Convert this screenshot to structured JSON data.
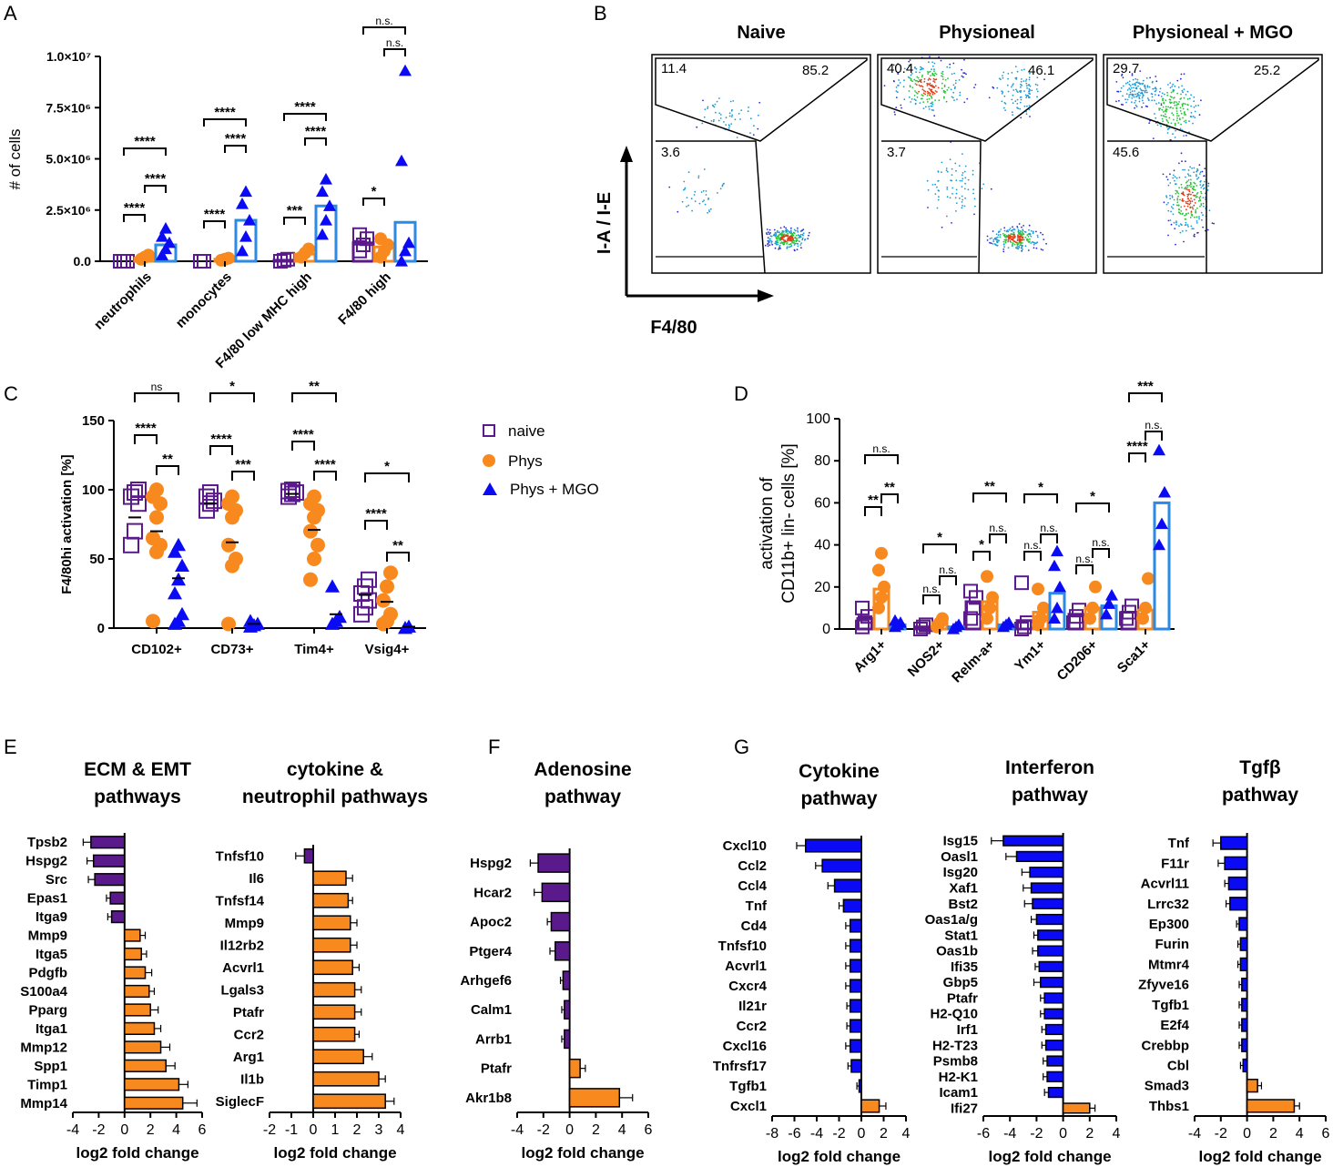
{
  "colors": {
    "naive": "#5b1a8c",
    "phys": "#f7891f",
    "mgo": "#0a0af5",
    "mgo_bar": "#2b8ae6"
  },
  "legend": {
    "items": [
      {
        "key": "naive",
        "label": "naive"
      },
      {
        "key": "phys",
        "label": "Phys"
      },
      {
        "key": "mgo",
        "label": "Phys + MGO"
      }
    ]
  },
  "chart_data": [
    {
      "panel": "A",
      "type": "scatter-bar",
      "ylabel": "# of cells",
      "ytick_labels": [
        "0.0",
        "2.5×10⁶",
        "5.0×10⁶",
        "7.5×10⁶",
        "1.0×10⁷"
      ],
      "ylim": [
        0,
        10000000
      ],
      "categories": [
        "neutrophils",
        "monocytes",
        "F4/80 low MHC high",
        "F4/80 high"
      ],
      "group_means": {
        "naive": [
          0,
          0,
          50000,
          900000
        ],
        "phys": [
          150000,
          100000,
          350000,
          700000
        ],
        "mgo": [
          800000,
          2000000,
          2700000,
          1900000
        ]
      },
      "points": {
        "naive": [
          [
            0,
            0,
            0
          ],
          [
            0,
            0
          ],
          [
            0,
            50000,
            100000
          ],
          [
            500000,
            800000,
            1100000,
            1300000
          ]
        ],
        "phys": [
          [
            100000,
            200000,
            300000
          ],
          [
            50000,
            100000,
            150000
          ],
          [
            200000,
            400000,
            600000
          ],
          [
            200000,
            500000,
            800000,
            1100000
          ]
        ],
        "mgo": [
          [
            300000,
            600000,
            900000,
            1200000,
            1600000
          ],
          [
            500000,
            1200000,
            2000000,
            2800000,
            3400000
          ],
          [
            1300000,
            2000000,
            2700000,
            3400000,
            4000000
          ],
          [
            0,
            500000,
            900000,
            4900000,
            9300000
          ]
        ]
      },
      "significance": [
        "****",
        "****",
        "****",
        "****",
        "****",
        "****",
        "***",
        "****",
        "****",
        "*",
        "n.s.",
        "n.s."
      ]
    },
    {
      "panel": "B",
      "type": "flow-cytometry",
      "xlabel": "F4/80",
      "ylabel": "I-A / I-E",
      "plots": [
        {
          "title": "Naive",
          "gates": [
            "11.4",
            "85.2",
            "3.6"
          ]
        },
        {
          "title": "Physioneal",
          "gates": [
            "40.4",
            "46.1",
            "3.7"
          ]
        },
        {
          "title": "Physioneal + MGO",
          "gates": [
            "29.7",
            "25.2",
            "45.6"
          ]
        }
      ]
    },
    {
      "panel": "C",
      "type": "scatter",
      "ylabel": "F4/80hi activation [%]",
      "ylim": [
        0,
        150
      ],
      "yticks": [
        "0",
        "50",
        "100",
        "150"
      ],
      "categories": [
        "CD102+",
        "CD73+",
        "Tim4+",
        "Vsig4+"
      ],
      "points": {
        "naive": [
          [
            60,
            70,
            90,
            95,
            98,
            100
          ],
          [
            85,
            90,
            92,
            95,
            98
          ],
          [
            95,
            97,
            98,
            99,
            100
          ],
          [
            10,
            15,
            20,
            25,
            30,
            35
          ]
        ],
        "phys": [
          [
            5,
            55,
            60,
            65,
            80,
            90,
            95,
            100
          ],
          [
            3,
            45,
            50,
            60,
            80,
            85,
            90,
            95
          ],
          [
            35,
            50,
            60,
            70,
            80,
            85,
            90,
            95
          ],
          [
            3,
            5,
            10,
            20,
            30,
            40
          ]
        ],
        "mgo": [
          [
            3,
            5,
            10,
            25,
            35,
            45,
            55,
            60
          ],
          [
            1,
            2,
            3,
            5
          ],
          [
            3,
            5,
            8,
            30
          ],
          [
            0,
            1
          ]
        ]
      },
      "means": {
        "naive": [
          80,
          90,
          97,
          24
        ],
        "phys": [
          70,
          62,
          71,
          19
        ],
        "mgo": [
          36,
          3,
          10,
          1
        ]
      },
      "significance": [
        "****",
        "ns",
        "**",
        "****",
        "*",
        "***",
        "****",
        "**",
        "****",
        "****",
        "*",
        "**"
      ]
    },
    {
      "panel": "D",
      "type": "scatter-bar",
      "ylabel_line1": "activation of",
      "ylabel_line2": "CD11b+ lin- cells [%]",
      "ylim": [
        0,
        100
      ],
      "yticks": [
        "0",
        "20",
        "40",
        "60",
        "80",
        "100"
      ],
      "categories": [
        "Arg1+",
        "NOS2+",
        "Relm-a+",
        "Ym1+",
        "CD206+",
        "Sca1+"
      ],
      "means": {
        "naive": [
          5,
          1,
          13,
          4,
          7,
          8
        ],
        "phys": [
          19,
          3,
          13,
          8,
          10,
          9
        ],
        "mgo": [
          2,
          1,
          2,
          17,
          11,
          60
        ]
      },
      "points": {
        "naive": [
          [
            1,
            3,
            6,
            10
          ],
          [
            0,
            1,
            2
          ],
          [
            5,
            10,
            15,
            18
          ],
          [
            0,
            1,
            3,
            22
          ],
          [
            3,
            6,
            9
          ],
          [
            5,
            8,
            11
          ]
        ],
        "phys": [
          [
            10,
            15,
            20,
            28,
            36
          ],
          [
            1,
            3,
            5
          ],
          [
            5,
            10,
            15,
            25
          ],
          [
            2,
            5,
            10,
            19
          ],
          [
            5,
            10,
            20
          ],
          [
            5,
            10,
            24
          ]
        ],
        "mgo": [
          [
            1,
            2,
            3,
            4
          ],
          [
            0,
            1,
            2
          ],
          [
            1,
            2,
            3
          ],
          [
            5,
            10,
            20,
            30,
            37
          ],
          [
            7,
            12,
            16
          ],
          [
            40,
            50,
            65,
            85
          ]
        ]
      },
      "significance": [
        "n.s.",
        "**",
        "**",
        "*",
        "n.s.",
        "n.s.",
        "**",
        "n.s.",
        "*",
        "*",
        "n.s.",
        "n.s.",
        "*",
        "n.s.",
        "n.s.",
        "***",
        "n.s.",
        "****"
      ]
    },
    {
      "panel": "E",
      "type": "bar",
      "title": "ECM & EMT pathways",
      "xlabel": "log2 fold change",
      "xlim": [
        -4,
        6
      ],
      "xticks": [
        "-4",
        "-2",
        "0",
        "2",
        "4",
        "6"
      ],
      "categories": [
        "Tpsb2",
        "Hspg2",
        "Src",
        "Epas1",
        "Itga9",
        "Mmp9",
        "Itga5",
        "Pdgfb",
        "S100a4",
        "Pparg",
        "Itga1",
        "Mmp12",
        "Spp1",
        "Timp1",
        "Mmp14"
      ],
      "values": [
        -2.6,
        -2.4,
        -2.3,
        -1.1,
        -1.0,
        1.2,
        1.3,
        1.6,
        1.9,
        2.0,
        2.3,
        2.8,
        3.2,
        4.2,
        4.5
      ],
      "errors": [
        0.6,
        0.5,
        0.5,
        0.3,
        0.3,
        0.4,
        0.4,
        0.5,
        0.4,
        0.6,
        0.5,
        0.7,
        0.7,
        0.7,
        1.1
      ]
    },
    {
      "panel": "E",
      "type": "bar",
      "title": "cytokine & neutrophil pathways",
      "xlabel": "log2 fold change",
      "xlim": [
        -2,
        4
      ],
      "xticks": [
        "-2",
        "-1",
        "0",
        "1",
        "2",
        "3",
        "4"
      ],
      "categories": [
        "Tnfsf10",
        "Il6",
        "Tnfsf14",
        "Mmp9",
        "Il12rb2",
        "Acvrl1",
        "Lgals3",
        "Ptafr",
        "Ccr2",
        "Arg1",
        "Il1b",
        "SiglecF"
      ],
      "values": [
        -0.4,
        1.5,
        1.6,
        1.7,
        1.7,
        1.8,
        1.9,
        1.9,
        1.9,
        2.3,
        3.0,
        3.3
      ],
      "errors": [
        0.4,
        0.3,
        0.2,
        0.3,
        0.3,
        0.3,
        0.3,
        0.3,
        0.2,
        0.4,
        0.3,
        0.4
      ]
    },
    {
      "panel": "F",
      "type": "bar",
      "title": "Adenosine pathway",
      "xlabel": "log2 fold change",
      "xlim": [
        -4,
        6
      ],
      "xticks": [
        "-4",
        "-2",
        "0",
        "2",
        "4",
        "6"
      ],
      "categories": [
        "Hspg2",
        "Hcar2",
        "Apoc2",
        "Ptger4",
        "Arhgef6",
        "Calm1",
        "Arrb1",
        "Ptafr",
        "Akr1b8"
      ],
      "values": [
        -2.4,
        -2.1,
        -1.4,
        -1.1,
        -0.5,
        -0.4,
        -0.4,
        0.8,
        3.8
      ],
      "errors": [
        0.6,
        0.6,
        0.3,
        0.4,
        0.2,
        0.2,
        0.2,
        0.4,
        1.0
      ]
    },
    {
      "panel": "G",
      "type": "bar",
      "title": "Cytokine pathway",
      "xlabel": "log2 fold change",
      "xlim": [
        -8,
        4
      ],
      "xticks": [
        "-8",
        "-6",
        "-4",
        "-2",
        "0",
        "2",
        "4"
      ],
      "categories": [
        "Cxcl10",
        "Ccl2",
        "Ccl4",
        "Tnf",
        "Cd4",
        "Tnfsf10",
        "Acvrl1",
        "Cxcr4",
        "Il21r",
        "Ccr2",
        "Cxcl16",
        "Tnfrsf17",
        "Tgfb1",
        "Cxcl1"
      ],
      "values": [
        -5.0,
        -3.5,
        -2.4,
        -1.6,
        -1.0,
        -1.0,
        -1.0,
        -1.0,
        -1.0,
        -1.0,
        -1.0,
        -0.9,
        -0.2,
        1.6
      ],
      "errors": [
        0.8,
        0.6,
        0.6,
        0.4,
        0.4,
        0.4,
        0.4,
        0.4,
        0.3,
        0.3,
        0.4,
        0.3,
        0.2,
        0.6
      ]
    },
    {
      "panel": "G",
      "type": "bar",
      "title": "Interferon pathway",
      "xlabel": "log2 fold change",
      "xlim": [
        -6,
        4
      ],
      "xticks": [
        "-6",
        "-4",
        "-2",
        "0",
        "2",
        "4"
      ],
      "categories": [
        "Isg15",
        "Oasl1",
        "Isg20",
        "Xaf1",
        "Bst2",
        "Oas1a/g",
        "Stat1",
        "Oas1b",
        "Ifi35",
        "Gbp5",
        "Ptafr",
        "H2-Q10",
        "Irf1",
        "H2-T23",
        "Psmb8",
        "H2-K1",
        "Icam1",
        "Ifi27"
      ],
      "values": [
        -4.5,
        -3.5,
        -2.5,
        -2.4,
        -2.3,
        -2.0,
        -1.9,
        -1.9,
        -1.8,
        -1.7,
        -1.4,
        -1.4,
        -1.3,
        -1.3,
        -1.2,
        -1.2,
        -1.1,
        2.0
      ],
      "errors": [
        0.9,
        0.8,
        0.6,
        0.6,
        0.6,
        0.4,
        0.3,
        0.4,
        0.3,
        0.5,
        0.3,
        0.3,
        0.3,
        0.3,
        0.3,
        0.3,
        0.3,
        0.4
      ]
    },
    {
      "panel": "G",
      "type": "bar",
      "title": "Tgfβ pathway",
      "xlabel": "log2 fold change",
      "xlim": [
        -4,
        6
      ],
      "xticks": [
        "-4",
        "-2",
        "0",
        "2",
        "4",
        "6"
      ],
      "categories": [
        "Tnf",
        "F11r",
        "Acvrl11",
        "Lrrc32",
        "Ep300",
        "Furin",
        "Mtmr4",
        "Zfyve16",
        "Tgfb1",
        "E2f4",
        "Crebbp",
        "Cbl",
        "Smad3",
        "Thbs1"
      ],
      "values": [
        -2.0,
        -1.7,
        -1.4,
        -1.3,
        -0.6,
        -0.5,
        -0.5,
        -0.4,
        -0.4,
        -0.4,
        -0.4,
        -0.3,
        0.8,
        3.6
      ],
      "errors": [
        0.6,
        0.5,
        0.3,
        0.3,
        0.2,
        0.2,
        0.2,
        0.2,
        0.2,
        0.2,
        0.2,
        0.2,
        0.3,
        0.4
      ]
    }
  ]
}
